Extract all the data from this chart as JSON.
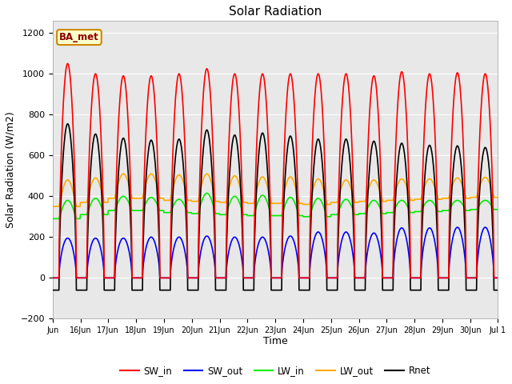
{
  "title": "Solar Radiation",
  "ylabel": "Solar Radiation (W/m2)",
  "xlabel": "Time",
  "ylim": [
    -200,
    1260
  ],
  "yticks": [
    -200,
    0,
    200,
    400,
    600,
    800,
    1000,
    1200
  ],
  "n_days": 16,
  "dt": 0.25,
  "SW_in_peak": [
    1050,
    1000,
    990,
    990,
    1000,
    1025,
    1000,
    1000,
    1000,
    1000,
    1000,
    990,
    1010,
    1000,
    1005,
    1000
  ],
  "SW_out_peak": [
    195,
    195,
    195,
    200,
    200,
    205,
    200,
    200,
    205,
    225,
    225,
    220,
    245,
    245,
    248,
    248
  ],
  "LW_in_base": [
    290,
    310,
    330,
    330,
    320,
    315,
    310,
    305,
    305,
    300,
    310,
    315,
    320,
    325,
    330,
    335
  ],
  "LW_in_peak_add": [
    90,
    80,
    70,
    65,
    65,
    100,
    90,
    100,
    90,
    90,
    75,
    65,
    60,
    55,
    50,
    45
  ],
  "LW_out_base": [
    350,
    370,
    390,
    390,
    380,
    375,
    370,
    365,
    365,
    360,
    370,
    375,
    380,
    385,
    390,
    395
  ],
  "LW_out_peak_add": [
    130,
    120,
    120,
    120,
    125,
    135,
    130,
    130,
    130,
    125,
    110,
    105,
    105,
    100,
    100,
    98
  ],
  "sunrise": 5.5,
  "sunset": 20.5,
  "colors": {
    "SW_in": "#ff0000",
    "SW_out": "#0000ff",
    "LW_in": "#00ee00",
    "LW_out": "#ffaa00",
    "Rnet": "#000000"
  },
  "legend_label_box_color": "#ffffcc",
  "legend_label_box_edge": "#cc8800",
  "legend_label_text": "BA_met",
  "plot_bg_color": "#e8e8e8",
  "fig_bg_color": "#ffffff",
  "grid_color": "#ffffff",
  "line_width": 1.2,
  "figsize": [
    6.4,
    4.8
  ],
  "dpi": 100
}
